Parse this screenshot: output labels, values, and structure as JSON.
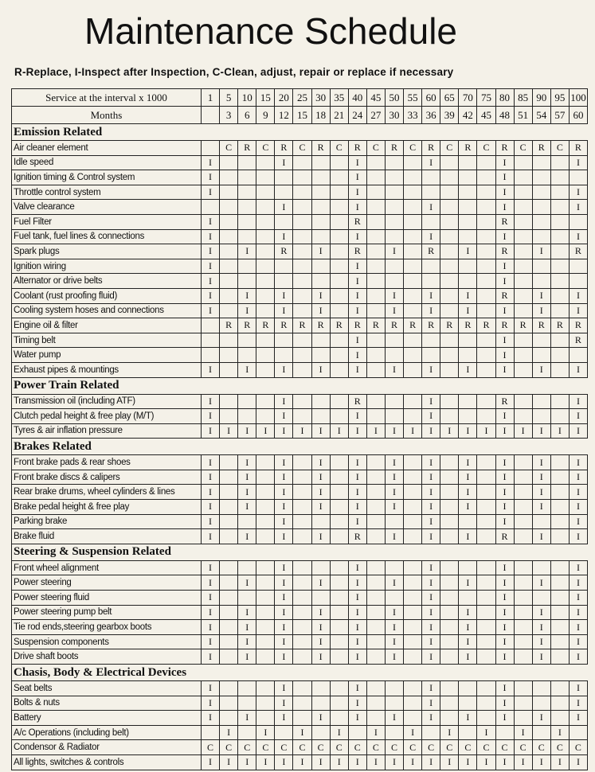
{
  "title": "Maintenance Schedule",
  "legend": "R-Replace, I-Inspect after Inspection, C-Clean, adjust, repair or replace if necessary",
  "header": {
    "service_label": "Service at the interval x 1000",
    "intervals": [
      1,
      5,
      10,
      15,
      20,
      25,
      30,
      35,
      40,
      45,
      50,
      55,
      60,
      65,
      70,
      75,
      80,
      85,
      90,
      95,
      100
    ],
    "months_label": "Months",
    "months": [
      null,
      3,
      6,
      9,
      12,
      15,
      18,
      21,
      24,
      27,
      30,
      33,
      36,
      39,
      42,
      45,
      48,
      51,
      54,
      57,
      60
    ]
  },
  "sections": [
    {
      "title": "Emission Related",
      "rows": [
        {
          "item": "Air cleaner element",
          "cells": [
            null,
            "C",
            "R",
            "C",
            "R",
            "C",
            "R",
            "C",
            "R",
            "C",
            "R",
            "C",
            "R",
            "C",
            "R",
            "C",
            "R",
            "C",
            "R",
            "C",
            "R"
          ]
        },
        {
          "item": "Idle speed",
          "cells": [
            "I",
            null,
            null,
            null,
            "I",
            null,
            null,
            null,
            "I",
            null,
            null,
            null,
            "I",
            null,
            null,
            null,
            "I",
            null,
            null,
            null,
            "I"
          ]
        },
        {
          "item": "Ignition timing & Control system",
          "cells": [
            "I",
            null,
            null,
            null,
            null,
            null,
            null,
            null,
            "I",
            null,
            null,
            null,
            null,
            null,
            null,
            null,
            "I",
            null,
            null,
            null,
            null
          ]
        },
        {
          "item": "Throttle control system",
          "cells": [
            "I",
            null,
            null,
            null,
            null,
            null,
            null,
            null,
            "I",
            null,
            null,
            null,
            null,
            null,
            null,
            null,
            "I",
            null,
            null,
            null,
            "I"
          ]
        },
        {
          "item": "Valve clearance",
          "cells": [
            null,
            null,
            null,
            null,
            "I",
            null,
            null,
            null,
            "I",
            null,
            null,
            null,
            "I",
            null,
            null,
            null,
            "I",
            null,
            null,
            null,
            "I"
          ]
        },
        {
          "item": "Fuel Filter",
          "cells": [
            "I",
            null,
            null,
            null,
            null,
            null,
            null,
            null,
            "R",
            null,
            null,
            null,
            null,
            null,
            null,
            null,
            "R",
            null,
            null,
            null,
            null
          ]
        },
        {
          "item": "Fuel tank, fuel lines & connections",
          "cells": [
            "I",
            null,
            null,
            null,
            "I",
            null,
            null,
            null,
            "I",
            null,
            null,
            null,
            "I",
            null,
            null,
            null,
            "I",
            null,
            null,
            null,
            "I"
          ]
        },
        {
          "item": "Spark plugs",
          "cells": [
            "I",
            null,
            "I",
            null,
            "R",
            null,
            "I",
            null,
            "R",
            null,
            "I",
            null,
            "R",
            null,
            "I",
            null,
            "R",
            null,
            "I",
            null,
            "R"
          ]
        },
        {
          "item": "Ignition wiring",
          "cells": [
            "I",
            null,
            null,
            null,
            null,
            null,
            null,
            null,
            "I",
            null,
            null,
            null,
            null,
            null,
            null,
            null,
            "I",
            null,
            null,
            null,
            null
          ]
        },
        {
          "item": "Alternator or drive belts",
          "cells": [
            "I",
            null,
            null,
            null,
            null,
            null,
            null,
            null,
            "I",
            null,
            null,
            null,
            null,
            null,
            null,
            null,
            "I",
            null,
            null,
            null,
            null
          ]
        },
        {
          "item": "Coolant (rust proofing fluid)",
          "cells": [
            "I",
            null,
            "I",
            null,
            "I",
            null,
            "I",
            null,
            "I",
            null,
            "I",
            null,
            "I",
            null,
            "I",
            null,
            "R",
            null,
            "I",
            null,
            "I"
          ]
        },
        {
          "item": "Cooling system hoses and connections",
          "cells": [
            "I",
            null,
            "I",
            null,
            "I",
            null,
            "I",
            null,
            "I",
            null,
            "I",
            null,
            "I",
            null,
            "I",
            null,
            "I",
            null,
            "I",
            null,
            "I"
          ]
        },
        {
          "item": "Engine oil & filter",
          "cells": [
            null,
            "R",
            "R",
            "R",
            "R",
            "R",
            "R",
            "R",
            "R",
            "R",
            "R",
            "R",
            "R",
            "R",
            "R",
            "R",
            "R",
            "R",
            "R",
            "R",
            "R"
          ]
        },
        {
          "item": "Timing belt",
          "cells": [
            null,
            null,
            null,
            null,
            null,
            null,
            null,
            null,
            "I",
            null,
            null,
            null,
            null,
            null,
            null,
            null,
            "I",
            null,
            null,
            null,
            "R"
          ]
        },
        {
          "item": "Water pump",
          "cells": [
            null,
            null,
            null,
            null,
            null,
            null,
            null,
            null,
            "I",
            null,
            null,
            null,
            null,
            null,
            null,
            null,
            "I",
            null,
            null,
            null,
            null
          ]
        },
        {
          "item": "Exhaust pipes & mountings",
          "cells": [
            "I",
            null,
            "I",
            null,
            "I",
            null,
            "I",
            null,
            "I",
            null,
            "I",
            null,
            "I",
            null,
            "I",
            null,
            "I",
            null,
            "I",
            null,
            "I"
          ]
        }
      ]
    },
    {
      "title": "Power Train Related",
      "rows": [
        {
          "item": "Transmission oil (including ATF)",
          "cells": [
            "I",
            null,
            null,
            null,
            "I",
            null,
            null,
            null,
            "R",
            null,
            null,
            null,
            "I",
            null,
            null,
            null,
            "R",
            null,
            null,
            null,
            "I"
          ]
        },
        {
          "item": "Clutch pedal height & free play (M/T)",
          "cells": [
            "I",
            null,
            null,
            null,
            "I",
            null,
            null,
            null,
            "I",
            null,
            null,
            null,
            "I",
            null,
            null,
            null,
            "I",
            null,
            null,
            null,
            "I"
          ]
        },
        {
          "item": "Tyres & air inflation pressure",
          "cells": [
            "I",
            "I",
            "I",
            "I",
            "I",
            "I",
            "I",
            "I",
            "I",
            "I",
            "I",
            "I",
            "I",
            "I",
            "I",
            "I",
            "I",
            "I",
            "I",
            "I",
            "I"
          ]
        }
      ]
    },
    {
      "title": "Brakes Related",
      "rows": [
        {
          "item": "Front brake pads & rear shoes",
          "cells": [
            "I",
            null,
            "I",
            null,
            "I",
            null,
            "I",
            null,
            "I",
            null,
            "I",
            null,
            "I",
            null,
            "I",
            null,
            "I",
            null,
            "I",
            null,
            "I"
          ]
        },
        {
          "item": "Front brake discs & calipers",
          "cells": [
            "I",
            null,
            "I",
            null,
            "I",
            null,
            "I",
            null,
            "I",
            null,
            "I",
            null,
            "I",
            null,
            "I",
            null,
            "I",
            null,
            "I",
            null,
            "I"
          ]
        },
        {
          "item": "Rear brake drums, wheel cylinders & lines",
          "cells": [
            "I",
            null,
            "I",
            null,
            "I",
            null,
            "I",
            null,
            "I",
            null,
            "I",
            null,
            "I",
            null,
            "I",
            null,
            "I",
            null,
            "I",
            null,
            "I"
          ]
        },
        {
          "item": "Brake pedal height & free play",
          "cells": [
            "I",
            null,
            "I",
            null,
            "I",
            null,
            "I",
            null,
            "I",
            null,
            "I",
            null,
            "I",
            null,
            "I",
            null,
            "I",
            null,
            "I",
            null,
            "I"
          ]
        },
        {
          "item": "Parking brake",
          "cells": [
            "I",
            null,
            null,
            null,
            "I",
            null,
            null,
            null,
            "I",
            null,
            null,
            null,
            "I",
            null,
            null,
            null,
            "I",
            null,
            null,
            null,
            "I"
          ]
        },
        {
          "item": "Brake fluid",
          "cells": [
            "I",
            null,
            "I",
            null,
            "I",
            null,
            "I",
            null,
            "R",
            null,
            "I",
            null,
            "I",
            null,
            "I",
            null,
            "R",
            null,
            "I",
            null,
            "I"
          ]
        }
      ]
    },
    {
      "title": "Steering & Suspension Related",
      "rows": [
        {
          "item": "Front wheel alignment",
          "cells": [
            "I",
            null,
            null,
            null,
            "I",
            null,
            null,
            null,
            "I",
            null,
            null,
            null,
            "I",
            null,
            null,
            null,
            "I",
            null,
            null,
            null,
            "I"
          ]
        },
        {
          "item": "Power steering",
          "cells": [
            "I",
            null,
            "I",
            null,
            "I",
            null,
            "I",
            null,
            "I",
            null,
            "I",
            null,
            "I",
            null,
            "I",
            null,
            "I",
            null,
            "I",
            null,
            "I"
          ]
        },
        {
          "item": "Power steering fluid",
          "cells": [
            "I",
            null,
            null,
            null,
            "I",
            null,
            null,
            null,
            "I",
            null,
            null,
            null,
            "I",
            null,
            null,
            null,
            "I",
            null,
            null,
            null,
            "I"
          ]
        },
        {
          "item": "Power steering pump belt",
          "cells": [
            "I",
            null,
            "I",
            null,
            "I",
            null,
            "I",
            null,
            "I",
            null,
            "I",
            null,
            "I",
            null,
            "I",
            null,
            "I",
            null,
            "I",
            null,
            "I"
          ]
        },
        {
          "item": "Tie rod ends,steering gearbox boots",
          "cells": [
            "I",
            null,
            "I",
            null,
            "I",
            null,
            "I",
            null,
            "I",
            null,
            "I",
            null,
            "I",
            null,
            "I",
            null,
            "I",
            null,
            "I",
            null,
            "I"
          ]
        },
        {
          "item": "Suspension components",
          "cells": [
            "I",
            null,
            "I",
            null,
            "I",
            null,
            "I",
            null,
            "I",
            null,
            "I",
            null,
            "I",
            null,
            "I",
            null,
            "I",
            null,
            "I",
            null,
            "I"
          ]
        },
        {
          "item": "Drive shaft boots",
          "cells": [
            "I",
            null,
            "I",
            null,
            "I",
            null,
            "I",
            null,
            "I",
            null,
            "I",
            null,
            "I",
            null,
            "I",
            null,
            "I",
            null,
            "I",
            null,
            "I"
          ]
        }
      ]
    },
    {
      "title": "Chasis, Body & Electrical Devices",
      "rows": [
        {
          "item": "Seat belts",
          "cells": [
            "I",
            null,
            null,
            null,
            "I",
            null,
            null,
            null,
            "I",
            null,
            null,
            null,
            "I",
            null,
            null,
            null,
            "I",
            null,
            null,
            null,
            "I"
          ]
        },
        {
          "item": "Bolts & nuts",
          "cells": [
            "I",
            null,
            null,
            null,
            "I",
            null,
            null,
            null,
            "I",
            null,
            null,
            null,
            "I",
            null,
            null,
            null,
            "I",
            null,
            null,
            null,
            "I"
          ]
        },
        {
          "item": "Battery",
          "cells": [
            "I",
            null,
            "I",
            null,
            "I",
            null,
            "I",
            null,
            "I",
            null,
            "I",
            null,
            "I",
            null,
            "I",
            null,
            "I",
            null,
            "I",
            null,
            "I"
          ]
        },
        {
          "item": "A/c Operations (including belt)",
          "cells": [
            null,
            "I",
            null,
            "I",
            null,
            "I",
            null,
            "I",
            null,
            "I",
            null,
            "I",
            null,
            "I",
            null,
            "I",
            null,
            "I",
            null,
            "I",
            null
          ]
        },
        {
          "item": "Condensor & Radiator",
          "cells": [
            "C",
            "C",
            "C",
            "C",
            "C",
            "C",
            "C",
            "C",
            "C",
            "C",
            "C",
            "C",
            "C",
            "C",
            "C",
            "C",
            "C",
            "C",
            "C",
            "C",
            "C"
          ]
        },
        {
          "item": "All lights, switches & controls",
          "cells": [
            "I",
            "I",
            "I",
            "I",
            "I",
            "I",
            "I",
            "I",
            "I",
            "I",
            "I",
            "I",
            "I",
            "I",
            "I",
            "I",
            "I",
            "I",
            "I",
            "I",
            "I"
          ]
        }
      ]
    }
  ]
}
